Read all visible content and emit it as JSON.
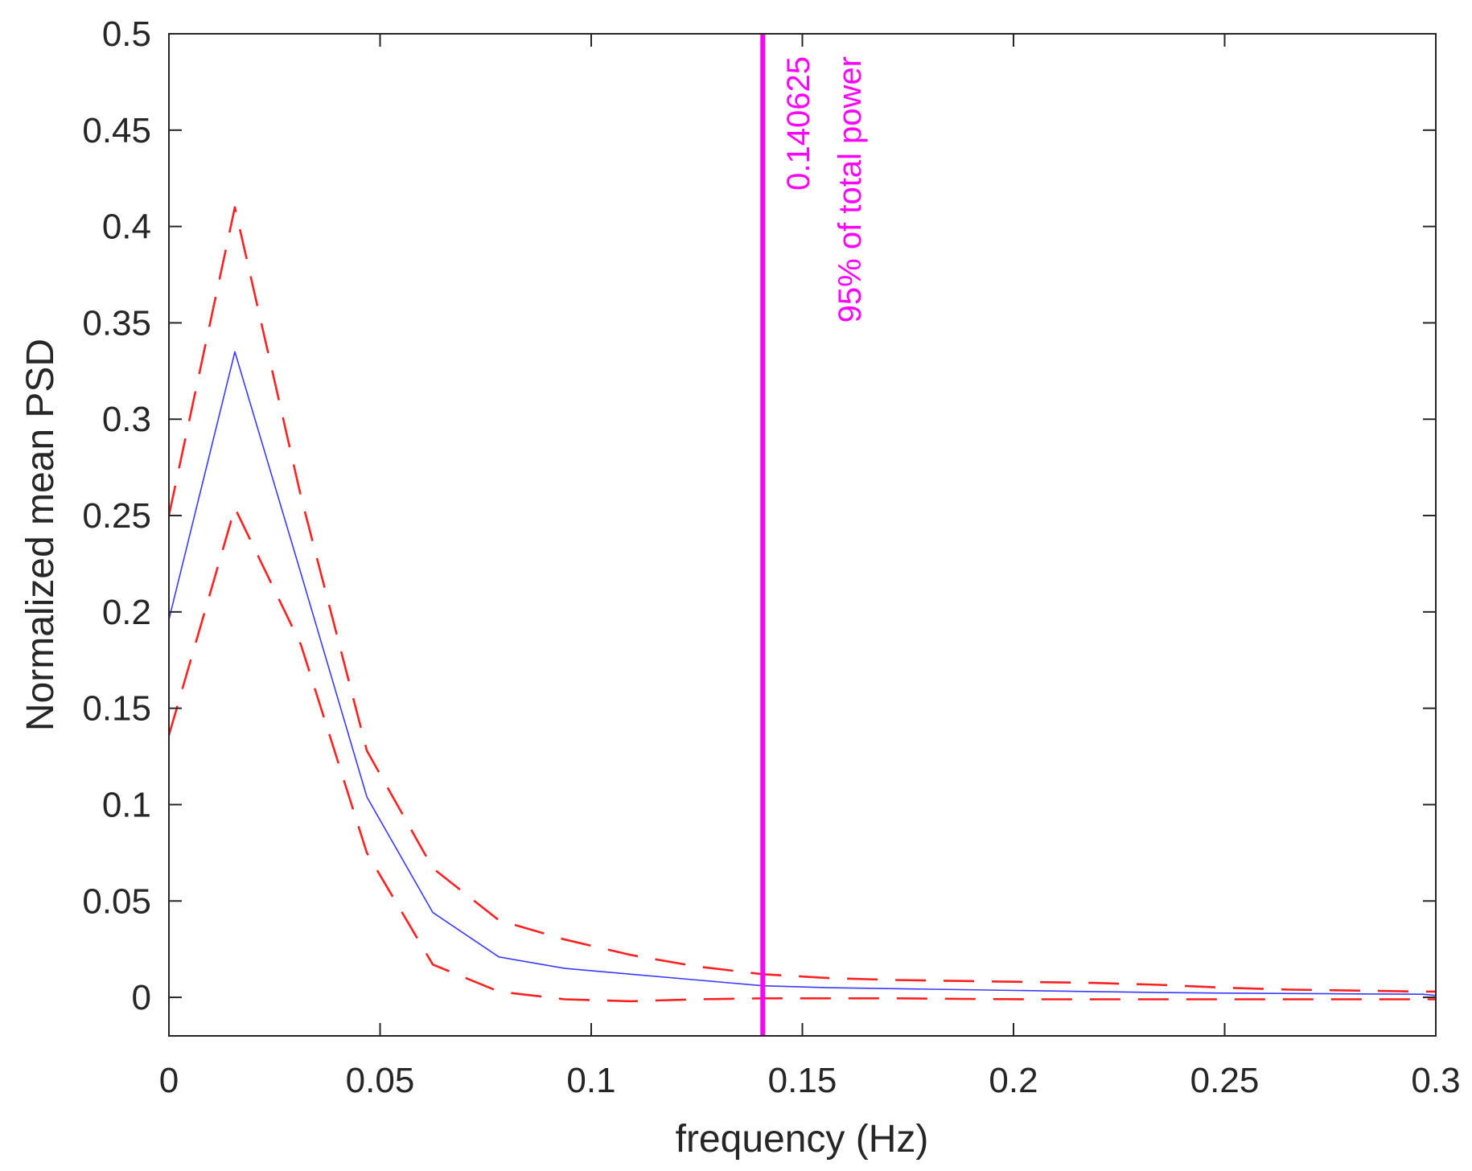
{
  "chart_data": {
    "type": "line",
    "title": "",
    "xlabel": "frequency (Hz)",
    "ylabel": "Normalized mean PSD",
    "xlim": [
      0,
      0.3
    ],
    "ylim": [
      -0.02,
      0.5
    ],
    "grid": false,
    "xticks": [
      0,
      0.05,
      0.1,
      0.15,
      0.2,
      0.25,
      0.3
    ],
    "xtick_labels": [
      "0",
      "0.05",
      "0.1",
      "0.15",
      "0.2",
      "0.25",
      "0.3"
    ],
    "yticks": [
      0,
      0.05,
      0.1,
      0.15,
      0.2,
      0.25,
      0.3,
      0.35,
      0.4,
      0.45,
      0.5
    ],
    "ytick_labels": [
      "0",
      "0.05",
      "0.1",
      "0.15",
      "0.2",
      "0.25",
      "0.3",
      "0.35",
      "0.4",
      "0.45",
      "0.5"
    ],
    "x": [
      0,
      0.015625,
      0.03125,
      0.046875,
      0.0625,
      0.078125,
      0.09375,
      0.109375,
      0.125,
      0.140625,
      0.15625,
      0.171875,
      0.1875,
      0.203125,
      0.21875,
      0.234375,
      0.25,
      0.265625,
      0.28125,
      0.296875,
      0.3
    ],
    "series": [
      {
        "style": "solid",
        "color": "#3a3aff",
        "values": [
          0.196,
          0.335,
          0.22,
          0.104,
          0.044,
          0.021,
          0.015,
          0.012,
          0.009,
          0.006,
          0.005,
          0.0045,
          0.004,
          0.0035,
          0.003,
          0.0025,
          0.0022,
          0.002,
          0.0018,
          0.0016,
          0.001
        ]
      },
      {
        "style": "dashed",
        "color": "#ff2020",
        "values": [
          0.25,
          0.41,
          0.26,
          0.128,
          0.067,
          0.04,
          0.03,
          0.022,
          0.016,
          0.012,
          0.01,
          0.009,
          0.0085,
          0.008,
          0.0075,
          0.0065,
          0.005,
          0.004,
          0.0035,
          0.003,
          0.003
        ]
      },
      {
        "style": "dashed",
        "color": "#ff2020",
        "values": [
          0.136,
          0.254,
          0.183,
          0.075,
          0.017,
          0.003,
          -0.001,
          -0.002,
          -0.001,
          -0.0005,
          -0.0005,
          -0.0005,
          -0.0008,
          -0.001,
          -0.001,
          -0.001,
          -0.001,
          -0.001,
          -0.001,
          -0.001,
          -0.001
        ]
      }
    ],
    "vline": {
      "x": 0.140625,
      "color": "#ff00ff",
      "label_value": "0.140625",
      "label_text": "95% of total power"
    }
  }
}
